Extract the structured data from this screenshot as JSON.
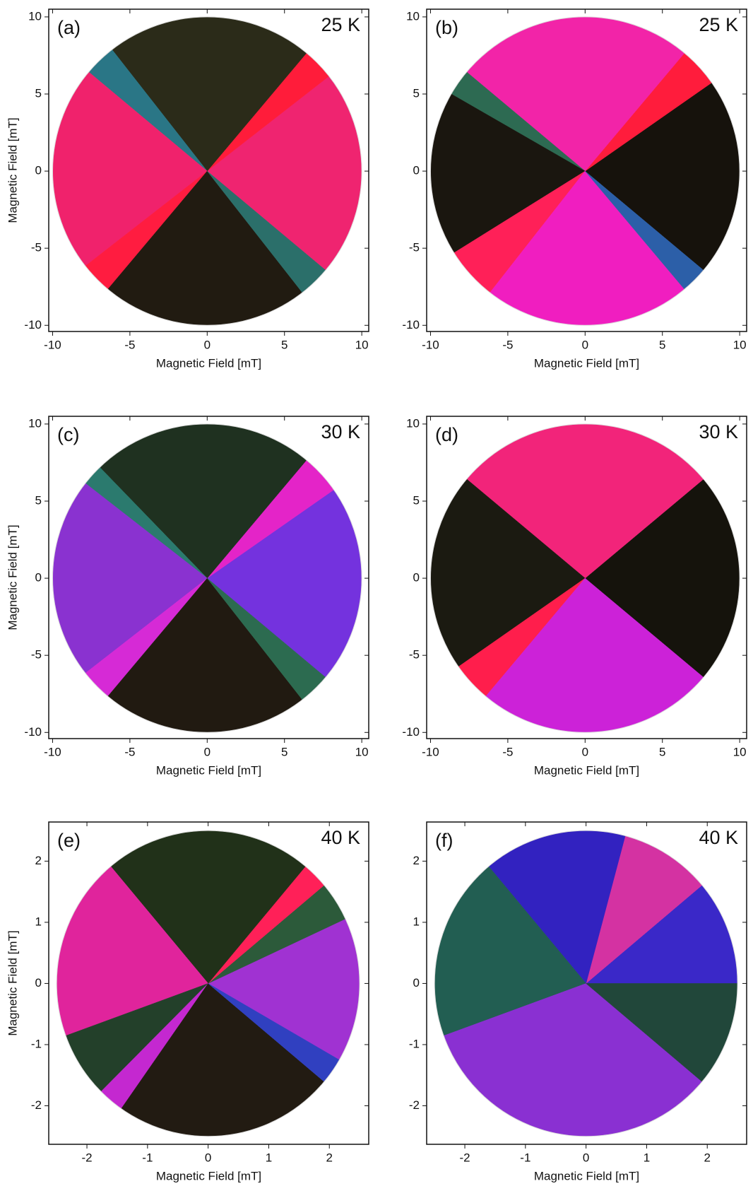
{
  "chart_data": [
    {
      "type": "polar-map",
      "panel": "(a)",
      "temperature": "25 K",
      "xlabel": "Magnetic Field [mT]",
      "ylabel": "Magnetic Field [mT]",
      "radius": 10,
      "xlim": [
        -10.25,
        10.45
      ],
      "ylim": [
        -10.4,
        10.5
      ],
      "xticks": [
        -10,
        -5,
        0,
        5,
        10
      ],
      "yticks": [
        -10,
        -5,
        0,
        5,
        10
      ]
    },
    {
      "type": "polar-map",
      "panel": "(b)",
      "temperature": "25 K",
      "xlabel": "Magnetic Field [mT]",
      "radius": 10,
      "xlim": [
        -10.25,
        10.45
      ],
      "ylim": [
        -10.4,
        10.5
      ],
      "xticks": [
        -10,
        -5,
        0,
        5,
        10
      ],
      "yticks": [
        -10,
        -5,
        0,
        5,
        10
      ]
    },
    {
      "type": "polar-map",
      "panel": "(c)",
      "temperature": "30 K",
      "xlabel": "Magnetic Field [mT]",
      "ylabel": "Magnetic Field [mT]",
      "radius": 10,
      "xlim": [
        -10.25,
        10.45
      ],
      "ylim": [
        -10.4,
        10.5
      ],
      "xticks": [
        -10,
        -5,
        0,
        5,
        10
      ],
      "yticks": [
        -10,
        -5,
        0,
        5,
        10
      ]
    },
    {
      "type": "polar-map",
      "panel": "(d)",
      "temperature": "30 K",
      "xlabel": "Magnetic Field [mT]",
      "radius": 10,
      "xlim": [
        -10.25,
        10.45
      ],
      "ylim": [
        -10.4,
        10.5
      ],
      "xticks": [
        -10,
        -5,
        0,
        5,
        10
      ],
      "yticks": [
        -10,
        -5,
        0,
        5,
        10
      ]
    },
    {
      "type": "polar-map",
      "panel": "(e)",
      "temperature": "40 K",
      "xlabel": "Magnetic Field [mT]",
      "ylabel": "Magnetic Field [mT]",
      "radius": 2.5,
      "xlim": [
        -2.63,
        2.65
      ],
      "ylim": [
        -2.63,
        2.64
      ],
      "xticks": [
        -2,
        -1,
        0,
        1,
        2
      ],
      "yticks": [
        -2,
        -1,
        0,
        1,
        2
      ]
    },
    {
      "type": "polar-map",
      "panel": "(f)",
      "temperature": "40 K",
      "xlabel": "Magnetic Field [mT]",
      "radius": 2.5,
      "xlim": [
        -2.63,
        2.65
      ],
      "ylim": [
        -2.63,
        2.64
      ],
      "xticks": [
        -2,
        -1,
        0,
        1,
        2
      ],
      "yticks": [
        -2,
        -1,
        0,
        1,
        2
      ]
    }
  ]
}
